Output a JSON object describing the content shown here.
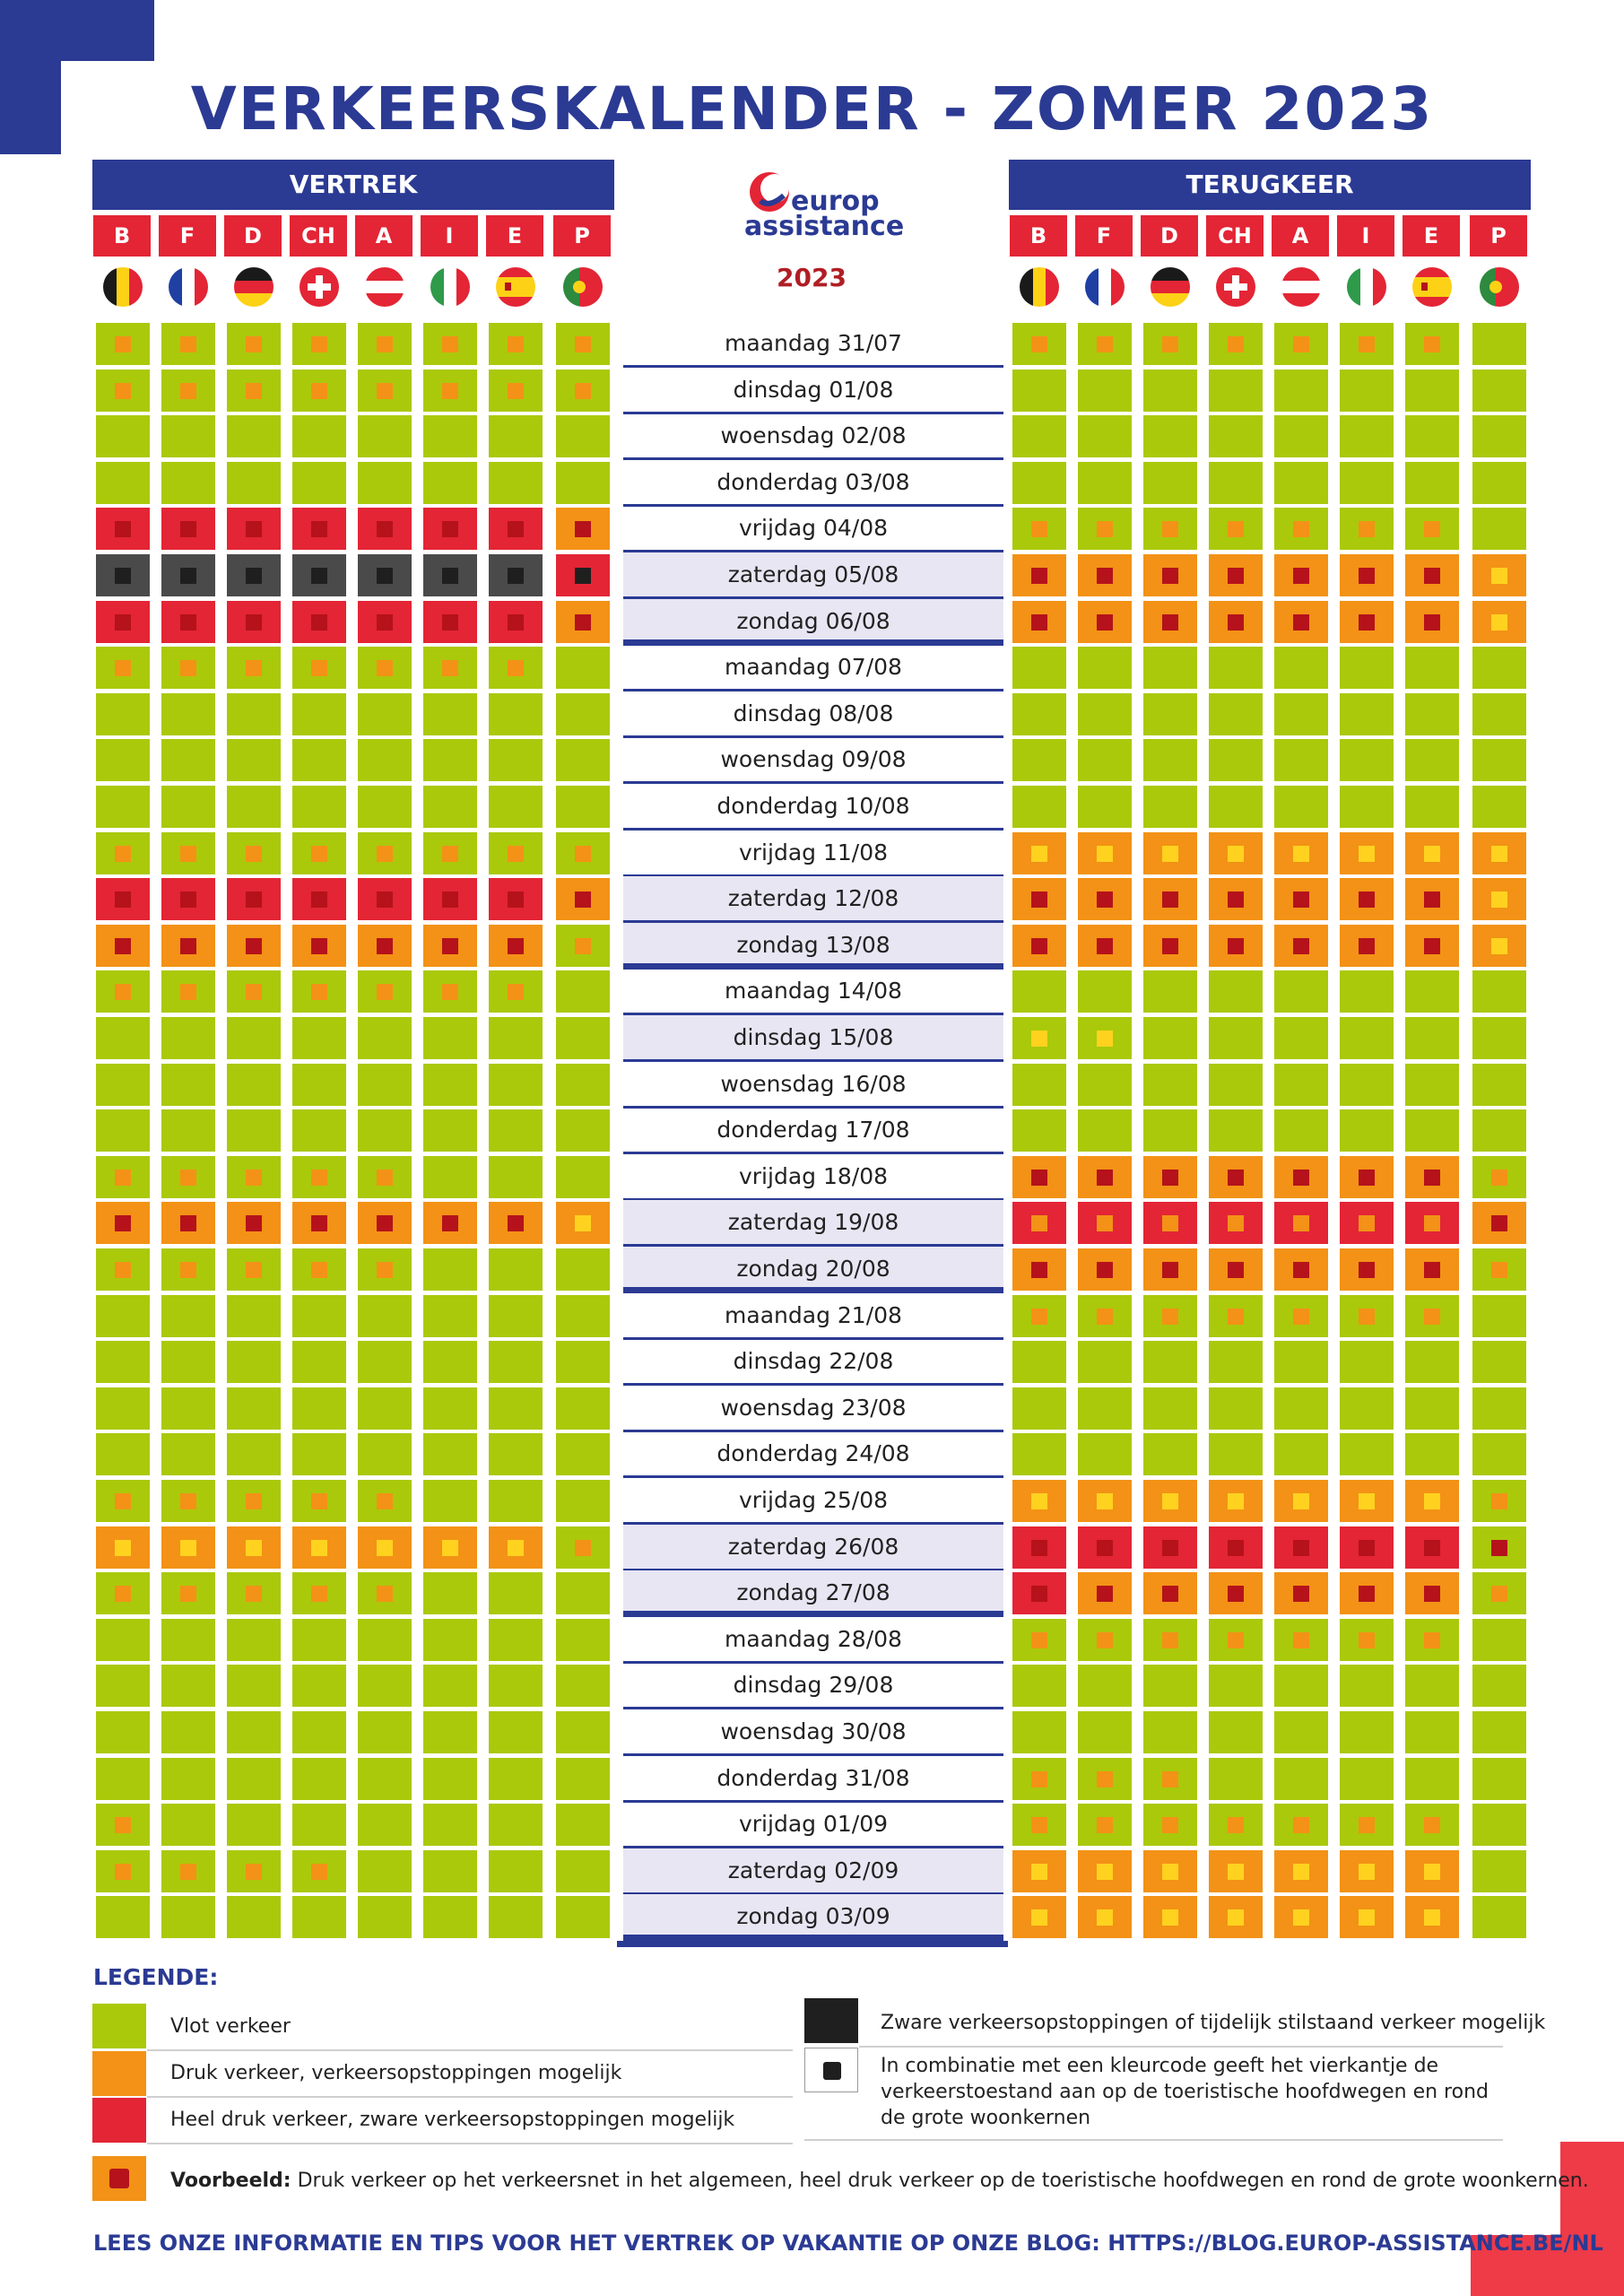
{
  "title": "VERKEERSKALENDER - ZOMER 2023",
  "logo": {
    "line1": "europ",
    "line2": "assistance",
    "year": "2023"
  },
  "departure_label": "VERTREK",
  "return_label": "TERUGKEER",
  "countries": [
    "B",
    "F",
    "D",
    "CH",
    "A",
    "I",
    "E",
    "P"
  ],
  "flag_icons": [
    "belgium-flag-icon",
    "france-flag-icon",
    "germany-flag-icon",
    "switzerland-flag-icon",
    "austria-flag-icon",
    "italy-flag-icon",
    "spain-flag-icon",
    "portugal-flag-icon"
  ],
  "colors": {
    "green": "#aac90a",
    "orange": "#f39216",
    "red": "#e32535",
    "black": "#4a4a4a",
    "blue": "#2b3a93",
    "mk_orange": "#f39216",
    "mk_red": "#b5121b",
    "mk_black": "#1f1f1f",
    "mk_yellow": "#ffd21f"
  },
  "days": [
    {
      "label": "maandag 31/07",
      "dep": [
        "G:o",
        "G:o",
        "G:o",
        "G:o",
        "G:o",
        "G:o",
        "G:o",
        "G:o"
      ],
      "ret": [
        "G:o",
        "G:o",
        "G:o",
        "G:o",
        "G:o",
        "G:o",
        "G:o",
        "G"
      ]
    },
    {
      "label": "dinsdag 01/08",
      "dep": [
        "G:o",
        "G:o",
        "G:o",
        "G:o",
        "G:o",
        "G:o",
        "G:o",
        "G:o"
      ],
      "ret": [
        "G",
        "G",
        "G",
        "G",
        "G",
        "G",
        "G",
        "G"
      ]
    },
    {
      "label": "woensdag 02/08",
      "dep": [
        "G",
        "G",
        "G",
        "G",
        "G",
        "G",
        "G",
        "G"
      ],
      "ret": [
        "G",
        "G",
        "G",
        "G",
        "G",
        "G",
        "G",
        "G"
      ]
    },
    {
      "label": "donderdag 03/08",
      "dep": [
        "G",
        "G",
        "G",
        "G",
        "G",
        "G",
        "G",
        "G"
      ],
      "ret": [
        "G",
        "G",
        "G",
        "G",
        "G",
        "G",
        "G",
        "G"
      ]
    },
    {
      "label": "vrijdag 04/08",
      "dep": [
        "R:r",
        "R:r",
        "R:r",
        "R:r",
        "R:r",
        "R:r",
        "R:r",
        "O:r"
      ],
      "ret": [
        "G:o",
        "G:o",
        "G:o",
        "G:o",
        "G:o",
        "G:o",
        "G:o",
        "G"
      ]
    },
    {
      "label": "zaterdag 05/08",
      "dep": [
        "K:k",
        "K:k",
        "K:k",
        "K:k",
        "K:k",
        "K:k",
        "K:k",
        "R:k"
      ],
      "ret": [
        "O:r",
        "O:r",
        "O:r",
        "O:r",
        "O:r",
        "O:r",
        "O:r",
        "O:y"
      ]
    },
    {
      "label": "zondag 06/08",
      "dep": [
        "R:r",
        "R:r",
        "R:r",
        "R:r",
        "R:r",
        "R:r",
        "R:r",
        "O:r"
      ],
      "ret": [
        "O:r",
        "O:r",
        "O:r",
        "O:r",
        "O:r",
        "O:r",
        "O:r",
        "O:y"
      ]
    },
    {
      "label": "maandag 07/08",
      "dep": [
        "G:o",
        "G:o",
        "G:o",
        "G:o",
        "G:o",
        "G:o",
        "G:o",
        "G"
      ],
      "ret": [
        "G",
        "G",
        "G",
        "G",
        "G",
        "G",
        "G",
        "G"
      ]
    },
    {
      "label": "dinsdag 08/08",
      "dep": [
        "G",
        "G",
        "G",
        "G",
        "G",
        "G",
        "G",
        "G"
      ],
      "ret": [
        "G",
        "G",
        "G",
        "G",
        "G",
        "G",
        "G",
        "G"
      ]
    },
    {
      "label": "woensdag 09/08",
      "dep": [
        "G",
        "G",
        "G",
        "G",
        "G",
        "G",
        "G",
        "G"
      ],
      "ret": [
        "G",
        "G",
        "G",
        "G",
        "G",
        "G",
        "G",
        "G"
      ]
    },
    {
      "label": "donderdag 10/08",
      "dep": [
        "G",
        "G",
        "G",
        "G",
        "G",
        "G",
        "G",
        "G"
      ],
      "ret": [
        "G",
        "G",
        "G",
        "G",
        "G",
        "G",
        "G",
        "G"
      ]
    },
    {
      "label": "vrijdag 11/08",
      "dep": [
        "G:o",
        "G:o",
        "G:o",
        "G:o",
        "G:o",
        "G:o",
        "G:o",
        "G:o"
      ],
      "ret": [
        "O:y",
        "O:y",
        "O:y",
        "O:y",
        "O:y",
        "O:y",
        "O:y",
        "O:y"
      ]
    },
    {
      "label": "zaterdag 12/08",
      "dep": [
        "R:r",
        "R:r",
        "R:r",
        "R:r",
        "R:r",
        "R:r",
        "R:r",
        "O:r"
      ],
      "ret": [
        "O:r",
        "O:r",
        "O:r",
        "O:r",
        "O:r",
        "O:r",
        "O:r",
        "O:y"
      ]
    },
    {
      "label": "zondag 13/08",
      "dep": [
        "O:r",
        "O:r",
        "O:r",
        "O:r",
        "O:r",
        "O:r",
        "O:r",
        "G:o"
      ],
      "ret": [
        "O:r",
        "O:r",
        "O:r",
        "O:r",
        "O:r",
        "O:r",
        "O:r",
        "O:y"
      ]
    },
    {
      "label": "maandag 14/08",
      "dep": [
        "G:o",
        "G:o",
        "G:o",
        "G:o",
        "G:o",
        "G:o",
        "G:o",
        "G"
      ],
      "ret": [
        "G",
        "G",
        "G",
        "G",
        "G",
        "G",
        "G",
        "G"
      ]
    },
    {
      "label": "dinsdag 15/08",
      "dep": [
        "G",
        "G",
        "G",
        "G",
        "G",
        "G",
        "G",
        "G"
      ],
      "ret": [
        "G:y",
        "G:y",
        "G",
        "G",
        "G",
        "G",
        "G",
        "G"
      ]
    },
    {
      "label": "woensdag 16/08",
      "dep": [
        "G",
        "G",
        "G",
        "G",
        "G",
        "G",
        "G",
        "G"
      ],
      "ret": [
        "G",
        "G",
        "G",
        "G",
        "G",
        "G",
        "G",
        "G"
      ]
    },
    {
      "label": "donderdag 17/08",
      "dep": [
        "G",
        "G",
        "G",
        "G",
        "G",
        "G",
        "G",
        "G"
      ],
      "ret": [
        "G",
        "G",
        "G",
        "G",
        "G",
        "G",
        "G",
        "G"
      ]
    },
    {
      "label": "vrijdag 18/08",
      "dep": [
        "G:o",
        "G:o",
        "G:o",
        "G:o",
        "G:o",
        "G",
        "G",
        "G"
      ],
      "ret": [
        "O:r",
        "O:r",
        "O:r",
        "O:r",
        "O:r",
        "O:r",
        "O:r",
        "G:o"
      ]
    },
    {
      "label": "zaterdag 19/08",
      "dep": [
        "O:r",
        "O:r",
        "O:r",
        "O:r",
        "O:r",
        "O:r",
        "O:r",
        "O:y"
      ],
      "ret": [
        "R:o",
        "R:o",
        "R:o",
        "R:o",
        "R:o",
        "R:o",
        "R:o",
        "O:r"
      ]
    },
    {
      "label": "zondag 20/08",
      "dep": [
        "G:o",
        "G:o",
        "G:o",
        "G:o",
        "G:o",
        "G",
        "G",
        "G"
      ],
      "ret": [
        "O:r",
        "O:r",
        "O:r",
        "O:r",
        "O:r",
        "O:r",
        "O:r",
        "G:o"
      ]
    },
    {
      "label": "maandag 21/08",
      "dep": [
        "G",
        "G",
        "G",
        "G",
        "G",
        "G",
        "G",
        "G"
      ],
      "ret": [
        "G:o",
        "G:o",
        "G:o",
        "G:o",
        "G:o",
        "G:o",
        "G:o",
        "G"
      ]
    },
    {
      "label": "dinsdag 22/08",
      "dep": [
        "G",
        "G",
        "G",
        "G",
        "G",
        "G",
        "G",
        "G"
      ],
      "ret": [
        "G",
        "G",
        "G",
        "G",
        "G",
        "G",
        "G",
        "G"
      ]
    },
    {
      "label": "woensdag 23/08",
      "dep": [
        "G",
        "G",
        "G",
        "G",
        "G",
        "G",
        "G",
        "G"
      ],
      "ret": [
        "G",
        "G",
        "G",
        "G",
        "G",
        "G",
        "G",
        "G"
      ]
    },
    {
      "label": "donderdag 24/08",
      "dep": [
        "G",
        "G",
        "G",
        "G",
        "G",
        "G",
        "G",
        "G"
      ],
      "ret": [
        "G",
        "G",
        "G",
        "G",
        "G",
        "G",
        "G",
        "G"
      ]
    },
    {
      "label": "vrijdag 25/08",
      "dep": [
        "G:o",
        "G:o",
        "G:o",
        "G:o",
        "G:o",
        "G",
        "G",
        "G"
      ],
      "ret": [
        "O:y",
        "O:y",
        "O:y",
        "O:y",
        "O:y",
        "O:y",
        "O:y",
        "G:o"
      ]
    },
    {
      "label": "zaterdag 26/08",
      "dep": [
        "O:y",
        "O:y",
        "O:y",
        "O:y",
        "O:y",
        "O:y",
        "O:y",
        "G:o"
      ],
      "ret": [
        "R:r",
        "R:r",
        "R:r",
        "R:r",
        "R:r",
        "R:r",
        "R:r",
        "G:r"
      ]
    },
    {
      "label": "zondag 27/08",
      "dep": [
        "G:o",
        "G:o",
        "G:o",
        "G:o",
        "G:o",
        "G",
        "G",
        "G"
      ],
      "ret": [
        "R:r",
        "O:r",
        "O:r",
        "O:r",
        "O:r",
        "O:r",
        "O:r",
        "G:o"
      ]
    },
    {
      "label": "maandag 28/08",
      "dep": [
        "G",
        "G",
        "G",
        "G",
        "G",
        "G",
        "G",
        "G"
      ],
      "ret": [
        "G:o",
        "G:o",
        "G:o",
        "G:o",
        "G:o",
        "G:o",
        "G:o",
        "G"
      ]
    },
    {
      "label": "dinsdag 29/08",
      "dep": [
        "G",
        "G",
        "G",
        "G",
        "G",
        "G",
        "G",
        "G"
      ],
      "ret": [
        "G",
        "G",
        "G",
        "G",
        "G",
        "G",
        "G",
        "G"
      ]
    },
    {
      "label": "woensdag 30/08",
      "dep": [
        "G",
        "G",
        "G",
        "G",
        "G",
        "G",
        "G",
        "G"
      ],
      "ret": [
        "G",
        "G",
        "G",
        "G",
        "G",
        "G",
        "G",
        "G"
      ]
    },
    {
      "label": "donderdag 31/08",
      "dep": [
        "G",
        "G",
        "G",
        "G",
        "G",
        "G",
        "G",
        "G"
      ],
      "ret": [
        "G:o",
        "G:o",
        "G:o",
        "G",
        "G",
        "G",
        "G",
        "G"
      ]
    },
    {
      "label": "vrijdag 01/09",
      "dep": [
        "G:o",
        "G",
        "G",
        "G",
        "G",
        "G",
        "G",
        "G"
      ],
      "ret": [
        "G:o",
        "G:o",
        "G:o",
        "G:o",
        "G:o",
        "G:o",
        "G:o",
        "G"
      ]
    },
    {
      "label": "zaterdag 02/09",
      "dep": [
        "G:o",
        "G:o",
        "G:o",
        "G:o",
        "G",
        "G",
        "G",
        "G"
      ],
      "ret": [
        "O:y",
        "O:y",
        "O:y",
        "O:y",
        "O:y",
        "O:y",
        "O:y",
        "G"
      ]
    },
    {
      "label": "zondag 03/09",
      "dep": [
        "G",
        "G",
        "G",
        "G",
        "G",
        "G",
        "G",
        "G"
      ],
      "ret": [
        "O:y",
        "O:y",
        "O:y",
        "O:y",
        "O:y",
        "O:y",
        "O:y",
        "G"
      ]
    }
  ],
  "legend": {
    "title": "LEGENDE:",
    "green": "Vlot verkeer",
    "orange": "Druk verkeer, verkeersopstoppingen mogelijk",
    "red": "Heel druk verkeer, zware verkeersopstoppingen mogelijk",
    "black": "Zware verkeersopstoppingen of tijdelijk stilstaand verkeer mogelijk",
    "square_line1": "In combinatie met een kleurcode geeft het vierkantje de",
    "square_line2": "verkeerstoestand aan op de toeristische hoofdwegen en rond",
    "square_line3": "de grote woonkernen",
    "example_label": "Voorbeeld:",
    "example_text": "Druk verkeer op het verkeersnet in het algemeen, heel druk verkeer op de toeristische hoofdwegen en rond de grote woonkernen."
  },
  "footer": "LEES ONZE INFORMATIE EN TIPS VOOR HET VERTREK OP VAKANTIE OP ONZE BLOG: HTTPS://BLOG.EUROP-ASSISTANCE.BE/NL"
}
